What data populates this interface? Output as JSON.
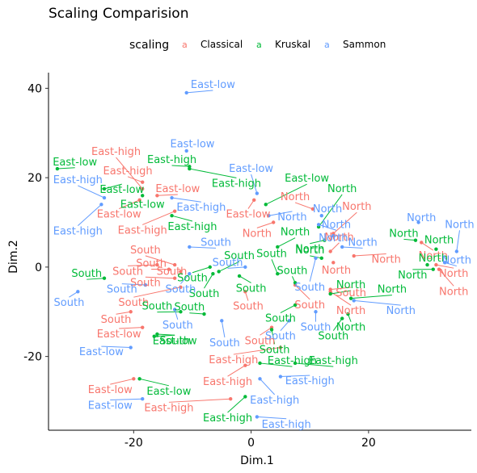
{
  "chart_data": {
    "type": "scatter",
    "title": "Scaling Comparision",
    "xlabel": "Dim.1",
    "ylabel": "Dim.2",
    "xlim": [
      -34.5,
      37.5
    ],
    "ylim": [
      -36.5,
      43.5
    ],
    "x_ticks": [
      -20,
      0,
      20
    ],
    "y_ticks": [
      -20,
      0,
      20,
      40
    ],
    "x_tick_labels": [
      "-20",
      "0",
      "20"
    ],
    "y_tick_labels": [
      "-20",
      "0",
      "20",
      "40"
    ],
    "grid": false,
    "legend": {
      "title": "scaling",
      "placement": "top",
      "glyph": "a",
      "entries": [
        "Classical",
        "Kruskal",
        "Sammon"
      ]
    },
    "series": [
      {
        "name": "Classical",
        "color": "#f8766d",
        "points": [
          {
            "x": -18.5,
            "y": 19,
            "lx": -21,
            "ly": 21.5,
            "label": "East-high"
          },
          {
            "x": -18.5,
            "y": 17.5,
            "lx": -23,
            "ly": 25.8,
            "label": "East-high"
          },
          {
            "x": -19,
            "y": 15,
            "lx": -22.5,
            "ly": 11.8,
            "label": "East-low"
          },
          {
            "x": -13,
            "y": 12.5,
            "lx": -18.5,
            "ly": 8.2,
            "label": "East-high"
          },
          {
            "x": -16,
            "y": 16,
            "lx": -12.5,
            "ly": 17.5,
            "label": "East-low"
          },
          {
            "x": 0.5,
            "y": 15,
            "lx": -0.5,
            "ly": 11.8,
            "label": "East-low"
          },
          {
            "x": 3.8,
            "y": 10,
            "lx": 1,
            "ly": 7.5,
            "label": "North"
          },
          {
            "x": 10.5,
            "y": 13,
            "lx": 7.5,
            "ly": 15.7,
            "label": "North"
          },
          {
            "x": 14,
            "y": 7.5,
            "lx": 18,
            "ly": 13.5,
            "label": "North"
          },
          {
            "x": 13.5,
            "y": 3.5,
            "lx": 15,
            "ly": 6.7,
            "label": "North"
          },
          {
            "x": 17.5,
            "y": 2.5,
            "lx": 23,
            "ly": 1.7,
            "label": "North"
          },
          {
            "x": 14,
            "y": 1,
            "lx": 14.5,
            "ly": -0.7,
            "label": "North"
          },
          {
            "x": 29,
            "y": 5.5,
            "lx": 31,
            "ly": 2.5,
            "label": "North"
          },
          {
            "x": 31.5,
            "y": 0.5,
            "lx": 34.5,
            "ly": -1.5,
            "label": "North"
          },
          {
            "x": 32,
            "y": -0.5,
            "lx": 34.5,
            "ly": -5.5,
            "label": "North"
          },
          {
            "x": 13.5,
            "y": -5,
            "lx": 17,
            "ly": -5.8,
            "label": "South"
          },
          {
            "x": 13.5,
            "y": -5.5,
            "lx": 17,
            "ly": -9.8,
            "label": "North"
          },
          {
            "x": 7.5,
            "y": -4,
            "lx": 10,
            "ly": -8.5,
            "label": "South"
          },
          {
            "x": -1,
            "y": -5.5,
            "lx": -0.5,
            "ly": -8.8,
            "label": "South"
          },
          {
            "x": -13,
            "y": 0.5,
            "lx": -18,
            "ly": 3.8,
            "label": "South"
          },
          {
            "x": -14,
            "y": -0.5,
            "lx": -17,
            "ly": 0.8,
            "label": "South"
          },
          {
            "x": -16,
            "y": 0.5,
            "lx": -21,
            "ly": -1.0,
            "label": "South"
          },
          {
            "x": -13,
            "y": -2.5,
            "lx": -18,
            "ly": -3.5,
            "label": "South"
          },
          {
            "x": -12,
            "y": -1,
            "lx": -13.5,
            "ly": -1.0,
            "label": "South"
          },
          {
            "x": -12,
            "y": -4.5,
            "lx": -20,
            "ly": -8.0,
            "label": "South"
          },
          {
            "x": -20.5,
            "y": -10,
            "lx": -23,
            "ly": -11.8,
            "label": "South"
          },
          {
            "x": -18.5,
            "y": -13.5,
            "lx": -22.5,
            "ly": -15.0,
            "label": "East-low"
          },
          {
            "x": -20,
            "y": -25,
            "lx": -24,
            "ly": -27.5,
            "label": "East-low"
          },
          {
            "x": -3.5,
            "y": -29.5,
            "lx": -14,
            "ly": -31.5,
            "label": "East-high"
          },
          {
            "x": 3.5,
            "y": -13.5,
            "lx": 1.5,
            "ly": -16.5,
            "label": "South"
          },
          {
            "x": 5,
            "y": -18,
            "lx": -3,
            "ly": -20.8,
            "label": "East-high"
          },
          {
            "x": -1,
            "y": -22,
            "lx": -4,
            "ly": -25.7,
            "label": "East-high"
          }
        ]
      },
      {
        "name": "Kruskal",
        "color": "#00ba38",
        "points": [
          {
            "x": -33,
            "y": 22,
            "lx": -30,
            "ly": 23.5,
            "label": "East-low"
          },
          {
            "x": -25,
            "y": 17.5,
            "lx": -22,
            "ly": 17.3,
            "label": "East-low"
          },
          {
            "x": -18.5,
            "y": 16,
            "lx": -18.5,
            "ly": 14.0,
            "label": "East-low"
          },
          {
            "x": -10.5,
            "y": 22.5,
            "lx": -13.5,
            "ly": 24.0,
            "label": "East-high"
          },
          {
            "x": -10.5,
            "y": 22,
            "lx": -2.5,
            "ly": 18.7,
            "label": "East-high"
          },
          {
            "x": -13.5,
            "y": 11.5,
            "lx": -10,
            "ly": 9.0,
            "label": "East-high"
          },
          {
            "x": 2.5,
            "y": 14,
            "lx": 9.5,
            "ly": 19.8,
            "label": "East-low"
          },
          {
            "x": 11.5,
            "y": 9,
            "lx": 15.5,
            "ly": 17.5,
            "label": "North"
          },
          {
            "x": 4.5,
            "y": 4.5,
            "lx": 7.5,
            "ly": 7.8,
            "label": "North"
          },
          {
            "x": 12.5,
            "y": 6,
            "lx": 10,
            "ly": 4.0,
            "label": "North"
          },
          {
            "x": 12,
            "y": 2,
            "lx": 10,
            "ly": 3.8,
            "label": "North"
          },
          {
            "x": 4.5,
            "y": -1.5,
            "lx": 3.5,
            "ly": 3.0,
            "label": "South"
          },
          {
            "x": 7.5,
            "y": -3.5,
            "lx": 7,
            "ly": -0.8,
            "label": "South"
          },
          {
            "x": 13.5,
            "y": -6,
            "lx": 17,
            "ly": -4.0,
            "label": "North"
          },
          {
            "x": 17,
            "y": -7,
            "lx": 24,
            "ly": -5.0,
            "label": "North"
          },
          {
            "x": 16.5,
            "y": -10.5,
            "lx": 17,
            "ly": -13.5,
            "label": "North"
          },
          {
            "x": 15.5,
            "y": -11.5,
            "lx": 14,
            "ly": -15.5,
            "label": "South"
          },
          {
            "x": 7.5,
            "y": -8.5,
            "lx": 5,
            "ly": -11.5,
            "label": "South"
          },
          {
            "x": 28,
            "y": 6,
            "lx": 26,
            "ly": 7.5,
            "label": "North"
          },
          {
            "x": 31.5,
            "y": 4,
            "lx": 32,
            "ly": 6.0,
            "label": "North"
          },
          {
            "x": 30,
            "y": 0.5,
            "lx": 31,
            "ly": 2.0,
            "label": "North"
          },
          {
            "x": 31,
            "y": -0.5,
            "lx": 27.5,
            "ly": -1.8,
            "label": "North"
          },
          {
            "x": 3.5,
            "y": -14,
            "lx": 4,
            "ly": -18.5,
            "label": "South"
          },
          {
            "x": 7.5,
            "y": -21.5,
            "lx": 14,
            "ly": -21.0,
            "label": "East-high"
          },
          {
            "x": 1.5,
            "y": -21.5,
            "lx": 7,
            "ly": -21.0,
            "label": "East-high"
          },
          {
            "x": -7,
            "y": 0,
            "lx": -10,
            "ly": -2.5,
            "label": "South"
          },
          {
            "x": -5.5,
            "y": -1,
            "lx": -2,
            "ly": 2.5,
            "label": "South"
          },
          {
            "x": -25,
            "y": -2.5,
            "lx": -28,
            "ly": -1.5,
            "label": "South"
          },
          {
            "x": -2,
            "y": -2,
            "lx": 0,
            "ly": -4.8,
            "label": "South"
          },
          {
            "x": -6.5,
            "y": -1.5,
            "lx": -8,
            "ly": -6.0,
            "label": "South"
          },
          {
            "x": -12,
            "y": -10,
            "lx": -16,
            "ly": -8.8,
            "label": "South"
          },
          {
            "x": -8,
            "y": -10.5,
            "lx": -10.5,
            "ly": -9.0,
            "label": "South"
          },
          {
            "x": -16,
            "y": -15,
            "lx": -13,
            "ly": -16.5,
            "label": "East-low"
          },
          {
            "x": -19,
            "y": -25,
            "lx": -14,
            "ly": -27.8,
            "label": "East-low"
          },
          {
            "x": -16.5,
            "y": -15.5,
            "lx": -13,
            "ly": -16.5,
            "label": "South"
          },
          {
            "x": -1,
            "y": -29,
            "lx": -4,
            "ly": -33.8,
            "label": "East-high"
          }
        ]
      },
      {
        "name": "Sammon",
        "color": "#619cff",
        "points": [
          {
            "x": -11,
            "y": 39,
            "lx": -6.5,
            "ly": 40.8,
            "label": "East-low"
          },
          {
            "x": -11,
            "y": 26,
            "lx": -10,
            "ly": 27.5,
            "label": "East-low"
          },
          {
            "x": -25,
            "y": 15.5,
            "lx": -29.5,
            "ly": 19.5,
            "label": "East-high"
          },
          {
            "x": -25.5,
            "y": 14,
            "lx": -29.5,
            "ly": 8.0,
            "label": "East-high"
          },
          {
            "x": -13.5,
            "y": 15.5,
            "lx": -8.5,
            "ly": 13.3,
            "label": "East-high"
          },
          {
            "x": 1,
            "y": 16.5,
            "lx": 0,
            "ly": 22.0,
            "label": "East-low"
          },
          {
            "x": 3,
            "y": 11.5,
            "lx": 7,
            "ly": 11.2,
            "label": "North"
          },
          {
            "x": 12,
            "y": 11.5,
            "lx": 13,
            "ly": 13.0,
            "label": "North"
          },
          {
            "x": 11.5,
            "y": 9.5,
            "lx": 14.5,
            "ly": 9.5,
            "label": "North"
          },
          {
            "x": 14,
            "y": 7,
            "lx": 14,
            "ly": 6.5,
            "label": "North"
          },
          {
            "x": 15.5,
            "y": 4.5,
            "lx": 19,
            "ly": 5.5,
            "label": "North"
          },
          {
            "x": 28.5,
            "y": 10,
            "lx": 29,
            "ly": 11.0,
            "label": "North"
          },
          {
            "x": 35,
            "y": 3.5,
            "lx": 35.5,
            "ly": 9.5,
            "label": "North"
          },
          {
            "x": 33,
            "y": 1,
            "lx": 35,
            "ly": 1.5,
            "label": "North"
          },
          {
            "x": 11,
            "y": 2,
            "lx": 10,
            "ly": -4.5,
            "label": "South"
          },
          {
            "x": 17.5,
            "y": -7.5,
            "lx": 25.5,
            "ly": -9.8,
            "label": "North"
          },
          {
            "x": 11,
            "y": -10,
            "lx": 11,
            "ly": -13.5,
            "label": "South"
          },
          {
            "x": 6.5,
            "y": -12,
            "lx": 5,
            "ly": -15.5,
            "label": "South"
          },
          {
            "x": -10.5,
            "y": 4.5,
            "lx": -6,
            "ly": 5.5,
            "label": "South"
          },
          {
            "x": -1,
            "y": 0,
            "lx": -4,
            "ly": 1.0,
            "label": "South"
          },
          {
            "x": -10.5,
            "y": -1.5,
            "lx": -12,
            "ly": -5.0,
            "label": "South"
          },
          {
            "x": -18,
            "y": -4,
            "lx": -22,
            "ly": -5.0,
            "label": "South"
          },
          {
            "x": -29.5,
            "y": -5.5,
            "lx": -31,
            "ly": -8.0,
            "label": "South"
          },
          {
            "x": -13,
            "y": -9.5,
            "lx": -12.5,
            "ly": -13.0,
            "label": "South"
          },
          {
            "x": -5,
            "y": -12,
            "lx": -4.5,
            "ly": -17.0,
            "label": "South"
          },
          {
            "x": -20.5,
            "y": -18,
            "lx": -25.5,
            "ly": -19.0,
            "label": "East-low"
          },
          {
            "x": -18.5,
            "y": -29.5,
            "lx": -24,
            "ly": -31.0,
            "label": "East-low"
          },
          {
            "x": 5,
            "y": -24.5,
            "lx": 10,
            "ly": -25.5,
            "label": "East-high"
          },
          {
            "x": 1.5,
            "y": -25,
            "lx": 4,
            "ly": -29.8,
            "label": "East-high"
          },
          {
            "x": 1,
            "y": -33.5,
            "lx": 6,
            "ly": -35.2,
            "label": "East-high"
          }
        ]
      }
    ]
  }
}
